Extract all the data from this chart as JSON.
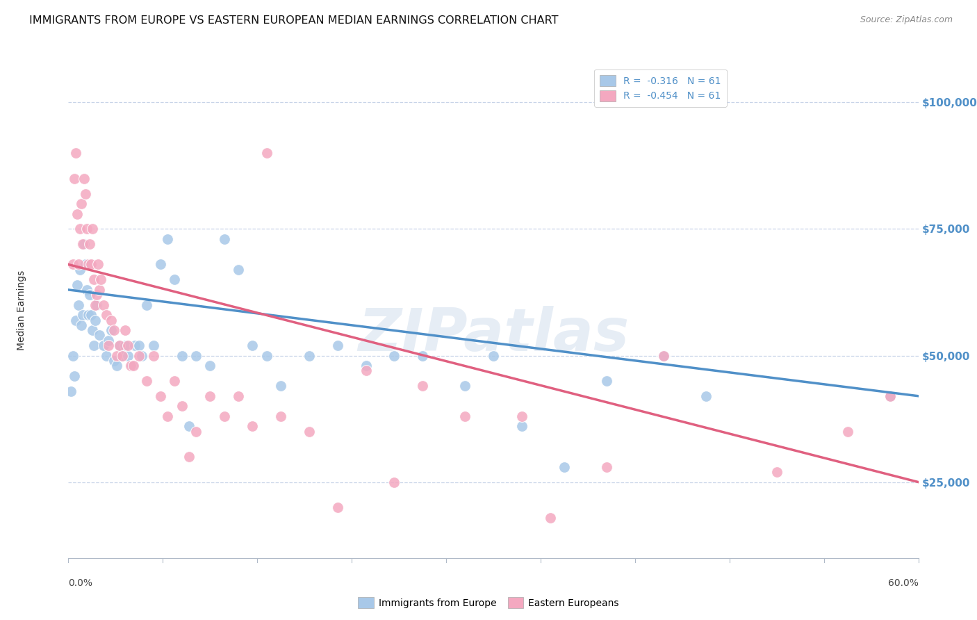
{
  "title": "IMMIGRANTS FROM EUROPE VS EASTERN EUROPEAN MEDIAN EARNINGS CORRELATION CHART",
  "source": "Source: ZipAtlas.com",
  "ylabel": "Median Earnings",
  "yticks": [
    25000,
    50000,
    75000,
    100000
  ],
  "ytick_labels": [
    "$25,000",
    "$50,000",
    "$75,000",
    "$100,000"
  ],
  "legend_entry_blue": "R =  -0.316   N = 61",
  "legend_entry_pink": "R =  -0.454   N = 61",
  "legend_label_blue": "Immigrants from Europe",
  "legend_label_pink": "Eastern Europeans",
  "watermark": "ZIPatlas",
  "blue_color": "#a8c8e8",
  "pink_color": "#f4a8c0",
  "blue_line_color": "#5090c8",
  "pink_line_color": "#e06080",
  "background": "#ffffff",
  "grid_color": "#c8d4e8",
  "blue_line_x0": 0.0,
  "blue_line_y0": 63000,
  "blue_line_x1": 0.6,
  "blue_line_y1": 42000,
  "pink_line_x0": 0.0,
  "pink_line_y0": 68000,
  "pink_line_x1": 0.6,
  "pink_line_y1": 25000,
  "xlim": [
    0.0,
    0.6
  ],
  "ylim": [
    10000,
    108000
  ],
  "blue_scatter": [
    [
      0.002,
      43000
    ],
    [
      0.003,
      50000
    ],
    [
      0.004,
      46000
    ],
    [
      0.005,
      57000
    ],
    [
      0.006,
      64000
    ],
    [
      0.007,
      60000
    ],
    [
      0.008,
      67000
    ],
    [
      0.009,
      56000
    ],
    [
      0.01,
      58000
    ],
    [
      0.011,
      72000
    ],
    [
      0.012,
      68000
    ],
    [
      0.013,
      63000
    ],
    [
      0.014,
      58000
    ],
    [
      0.015,
      62000
    ],
    [
      0.016,
      58000
    ],
    [
      0.017,
      55000
    ],
    [
      0.018,
      52000
    ],
    [
      0.019,
      57000
    ],
    [
      0.02,
      60000
    ],
    [
      0.022,
      54000
    ],
    [
      0.025,
      52000
    ],
    [
      0.027,
      50000
    ],
    [
      0.028,
      53000
    ],
    [
      0.03,
      55000
    ],
    [
      0.032,
      49000
    ],
    [
      0.034,
      48000
    ],
    [
      0.036,
      52000
    ],
    [
      0.038,
      50000
    ],
    [
      0.04,
      52000
    ],
    [
      0.042,
      50000
    ],
    [
      0.045,
      48000
    ],
    [
      0.047,
      52000
    ],
    [
      0.05,
      52000
    ],
    [
      0.052,
      50000
    ],
    [
      0.055,
      60000
    ],
    [
      0.06,
      52000
    ],
    [
      0.065,
      68000
    ],
    [
      0.07,
      73000
    ],
    [
      0.075,
      65000
    ],
    [
      0.08,
      50000
    ],
    [
      0.085,
      36000
    ],
    [
      0.09,
      50000
    ],
    [
      0.1,
      48000
    ],
    [
      0.11,
      73000
    ],
    [
      0.12,
      67000
    ],
    [
      0.13,
      52000
    ],
    [
      0.14,
      50000
    ],
    [
      0.15,
      44000
    ],
    [
      0.17,
      50000
    ],
    [
      0.19,
      52000
    ],
    [
      0.21,
      48000
    ],
    [
      0.23,
      50000
    ],
    [
      0.25,
      50000
    ],
    [
      0.28,
      44000
    ],
    [
      0.3,
      50000
    ],
    [
      0.32,
      36000
    ],
    [
      0.35,
      28000
    ],
    [
      0.38,
      45000
    ],
    [
      0.42,
      50000
    ],
    [
      0.45,
      42000
    ],
    [
      0.58,
      42000
    ]
  ],
  "pink_scatter": [
    [
      0.003,
      68000
    ],
    [
      0.004,
      85000
    ],
    [
      0.005,
      90000
    ],
    [
      0.006,
      78000
    ],
    [
      0.007,
      68000
    ],
    [
      0.008,
      75000
    ],
    [
      0.009,
      80000
    ],
    [
      0.01,
      72000
    ],
    [
      0.011,
      85000
    ],
    [
      0.012,
      82000
    ],
    [
      0.013,
      75000
    ],
    [
      0.014,
      68000
    ],
    [
      0.015,
      72000
    ],
    [
      0.016,
      68000
    ],
    [
      0.017,
      75000
    ],
    [
      0.018,
      65000
    ],
    [
      0.019,
      60000
    ],
    [
      0.02,
      62000
    ],
    [
      0.021,
      68000
    ],
    [
      0.022,
      63000
    ],
    [
      0.023,
      65000
    ],
    [
      0.025,
      60000
    ],
    [
      0.027,
      58000
    ],
    [
      0.028,
      52000
    ],
    [
      0.03,
      57000
    ],
    [
      0.032,
      55000
    ],
    [
      0.034,
      50000
    ],
    [
      0.036,
      52000
    ],
    [
      0.038,
      50000
    ],
    [
      0.04,
      55000
    ],
    [
      0.042,
      52000
    ],
    [
      0.044,
      48000
    ],
    [
      0.046,
      48000
    ],
    [
      0.05,
      50000
    ],
    [
      0.055,
      45000
    ],
    [
      0.06,
      50000
    ],
    [
      0.065,
      42000
    ],
    [
      0.07,
      38000
    ],
    [
      0.075,
      45000
    ],
    [
      0.08,
      40000
    ],
    [
      0.085,
      30000
    ],
    [
      0.09,
      35000
    ],
    [
      0.1,
      42000
    ],
    [
      0.11,
      38000
    ],
    [
      0.12,
      42000
    ],
    [
      0.13,
      36000
    ],
    [
      0.14,
      90000
    ],
    [
      0.15,
      38000
    ],
    [
      0.17,
      35000
    ],
    [
      0.19,
      20000
    ],
    [
      0.21,
      47000
    ],
    [
      0.23,
      25000
    ],
    [
      0.25,
      44000
    ],
    [
      0.28,
      38000
    ],
    [
      0.32,
      38000
    ],
    [
      0.34,
      18000
    ],
    [
      0.38,
      28000
    ],
    [
      0.42,
      50000
    ],
    [
      0.5,
      27000
    ],
    [
      0.55,
      35000
    ],
    [
      0.58,
      42000
    ]
  ],
  "title_fontsize": 11.5,
  "source_fontsize": 9,
  "axis_label_fontsize": 10,
  "tick_fontsize": 10,
  "legend_fontsize": 10
}
